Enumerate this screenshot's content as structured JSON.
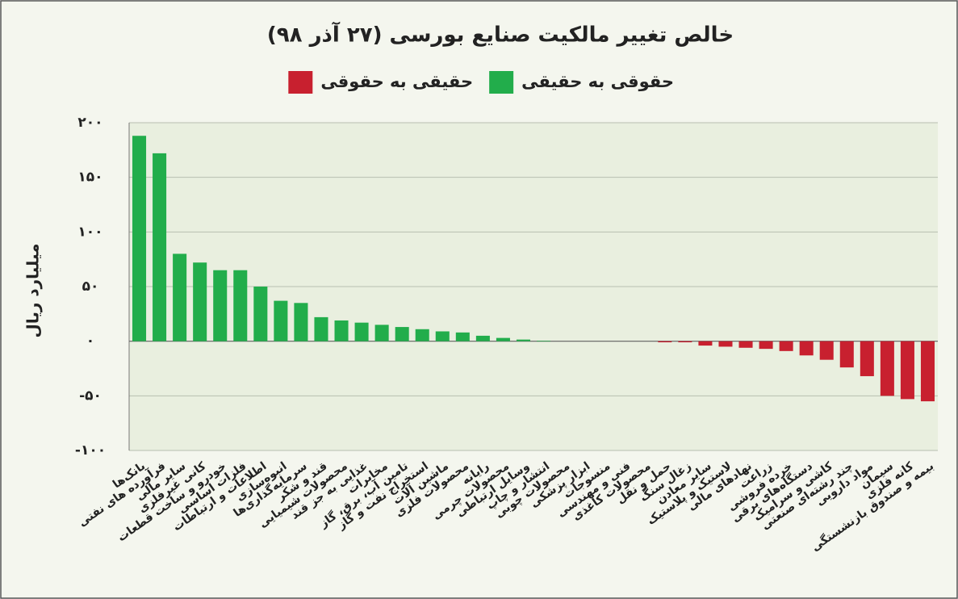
{
  "chart_data": {
    "type": "bar",
    "title": "خالص تغییر مالکیت صنایع بورسی (۲۷ آذر ۹۸)",
    "y_label": "میلیارد ریال",
    "categories": [
      "بانک‌ها",
      "فرآورده های نفتی",
      "سایر مالی",
      "کانی غیرفلزی",
      "خودرو و ساخت قطعات",
      "فلزات اساسی",
      "اطلاعات و ارتباطات",
      "انبوه‌سازی",
      "سرمایه‌گذاری‌ها",
      "قند و شکر",
      "محصولات شیمیایی",
      "غذایی به جز قند",
      "مخابرات",
      "تامین آب، برق، گاز",
      "استخراج نفت و گاز",
      "ماشین آلات",
      "محصولات فلزی",
      "رایانه",
      "محصولات چرمی",
      "وسایل ارتباطی",
      "انتشار و چاپ",
      "محصولات چوبی",
      "ابزار پزشکی",
      "منسوجات",
      "فنی و مهندسی",
      "محصولات کاغذی",
      "حمل و نقل",
      "زغال سنگ",
      "سایر معادن",
      "لاستیک و پلاستیک",
      "نهادهای مالی",
      "زراعت",
      "خرده فروشی",
      "دستگاه‌های برقی",
      "کاشی و سرامیک",
      "چند رشته‌ای صنعتی",
      "مواد دارویی",
      "سیمان",
      "کانه فلزی",
      "بیمه و صندوق بازنشستگی"
    ],
    "series": [
      {
        "name": "حقوقی به حقیقی",
        "color": "#22ad4b",
        "values": [
          188,
          172,
          80,
          72,
          65,
          65,
          50,
          37,
          35,
          22,
          19,
          17,
          15,
          13,
          11,
          9,
          8,
          5,
          3,
          1.5,
          0.5,
          0,
          0,
          0,
          0,
          0,
          null,
          null,
          null,
          null,
          null,
          null,
          null,
          null,
          null,
          null,
          null,
          null,
          null,
          null
        ]
      },
      {
        "name": "حقیقی به حقوقی",
        "color": "#c8202f",
        "values": [
          null,
          null,
          null,
          null,
          null,
          null,
          null,
          null,
          null,
          null,
          null,
          null,
          null,
          null,
          null,
          null,
          null,
          null,
          null,
          null,
          null,
          null,
          null,
          null,
          null,
          null,
          -1,
          -1,
          -4,
          -5,
          -6,
          -7,
          -9,
          -13,
          -17,
          -24,
          -32,
          -50,
          -53,
          -55
        ]
      }
    ],
    "ylim": [
      -100,
      200
    ],
    "yticks": [
      {
        "value": -100,
        "label": "-۱۰۰"
      },
      {
        "value": -50,
        "label": "-۵۰"
      },
      {
        "value": 0,
        "label": "۰"
      },
      {
        "value": 50,
        "label": "۵۰"
      },
      {
        "value": 100,
        "label": "۱۰۰"
      },
      {
        "value": 150,
        "label": "۱۵۰"
      },
      {
        "value": 200,
        "label": "۲۰۰"
      }
    ],
    "grid": true
  }
}
